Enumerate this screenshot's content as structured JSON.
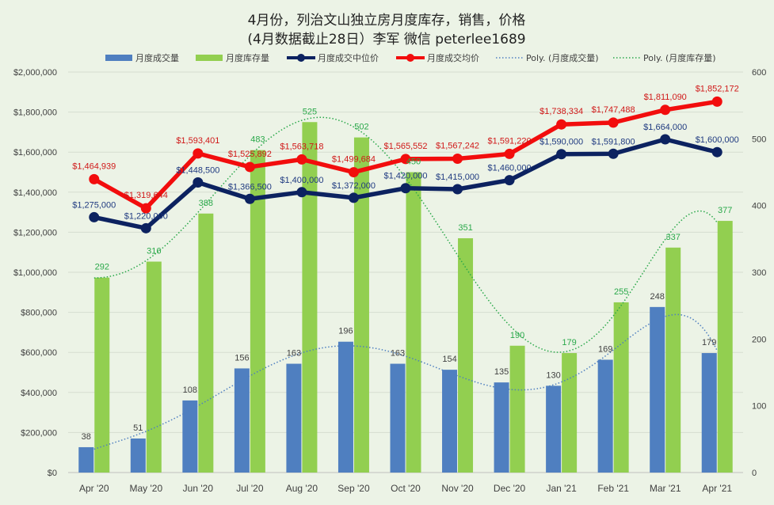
{
  "chart_data": {
    "type": "bar",
    "title_line1": "4月份，列治文山独立房月度库存，销售，价格",
    "title_line2": "(4月数据截止28日）李军  微信 peterlee1689",
    "categories": [
      "Apr '20",
      "May '20",
      "Jun '20",
      "Jul '20",
      "Aug '20",
      "Sep '20",
      "Oct '20",
      "Nov '20",
      "Dec '20",
      "Jan '21",
      "Feb '21",
      "Mar '21",
      "Apr '21"
    ],
    "left_axis": {
      "min": 0,
      "max": 2000000,
      "step": 200000,
      "tick_labels": [
        "$0",
        "$200,000",
        "$400,000",
        "$600,000",
        "$800,000",
        "$1,000,000",
        "$1,200,000",
        "$1,400,000",
        "$1,600,000",
        "$1,800,000",
        "$2,000,000"
      ]
    },
    "right_axis": {
      "min": 0,
      "max": 600,
      "step": 100,
      "tick_labels": [
        "0",
        "100",
        "200",
        "300",
        "400",
        "500",
        "600"
      ]
    },
    "series": [
      {
        "name": "月度成交量",
        "kind": "bar",
        "axis": "right",
        "color": "#4f7fc0",
        "label_color": "#404040",
        "values": [
          38,
          51,
          108,
          156,
          163,
          196,
          163,
          154,
          135,
          130,
          169,
          248,
          179
        ],
        "labels": [
          "38",
          "51",
          "108",
          "156",
          "163",
          "196",
          "163",
          "154",
          "135",
          "130",
          "169",
          "248",
          "179"
        ]
      },
      {
        "name": "月度库存量",
        "kind": "bar",
        "axis": "right",
        "color": "#92cf50",
        "label_color": "#2aa84a",
        "values": [
          292,
          316,
          388,
          483,
          525,
          502,
          450,
          351,
          190,
          179,
          255,
          337,
          377
        ],
        "labels": [
          "292",
          "316",
          "388",
          "483",
          "525",
          "502",
          "450",
          "351",
          "190",
          "179",
          "255",
          "337",
          "377"
        ]
      },
      {
        "name": "月度成交中位价",
        "kind": "line",
        "axis": "left",
        "color": "#0c2260",
        "label_color": "#1f3a80",
        "values": [
          1275000,
          1220000,
          1448500,
          1366500,
          1400000,
          1372000,
          1420000,
          1415000,
          1460000,
          1590000,
          1591800,
          1664000,
          1600000
        ],
        "labels": [
          "$1,275,000",
          "$1,220,000",
          "$1,448,500",
          "$1,366,500",
          "$1,400,000",
          "$1,372,000",
          "$1,420,000",
          "$1,415,000",
          "$1,460,000",
          "$1,590,000",
          "$1,591,800",
          "$1,664,000",
          "$1,600,000"
        ]
      },
      {
        "name": "月度成交均价",
        "kind": "line",
        "axis": "left",
        "color": "#f20d0d",
        "label_color": "#d01818",
        "values": [
          1464939,
          1319644,
          1593401,
          1525892,
          1563718,
          1499684,
          1565552,
          1567242,
          1591220,
          1738334,
          1747488,
          1811090,
          1852172
        ],
        "labels": [
          "$1,464,939",
          "$1,319,644",
          "$1,593,401",
          "$1,525,892",
          "$1,563,718",
          "$1,499,684",
          "$1,565,552",
          "$1,567,242",
          "$1,591,220",
          "$1,738,334",
          "$1,747,488",
          "$1,811,090",
          "$1,852,172"
        ]
      },
      {
        "name": "Poly. (月度成交量)",
        "kind": "trend",
        "axis": "right",
        "color": "#4f7fc0",
        "of": 0
      },
      {
        "name": "Poly. (月度库存量)",
        "kind": "trend",
        "axis": "right",
        "color": "#2aa84a",
        "of": 1
      }
    ]
  }
}
